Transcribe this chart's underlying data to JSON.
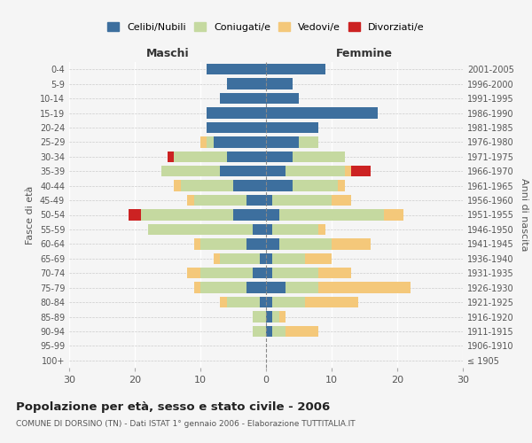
{
  "age_groups": [
    "100+",
    "95-99",
    "90-94",
    "85-89",
    "80-84",
    "75-79",
    "70-74",
    "65-69",
    "60-64",
    "55-59",
    "50-54",
    "45-49",
    "40-44",
    "35-39",
    "30-34",
    "25-29",
    "20-24",
    "15-19",
    "10-14",
    "5-9",
    "0-4"
  ],
  "birth_years": [
    "≤ 1905",
    "1906-1910",
    "1911-1915",
    "1916-1920",
    "1921-1925",
    "1926-1930",
    "1931-1935",
    "1936-1940",
    "1941-1945",
    "1946-1950",
    "1951-1955",
    "1956-1960",
    "1961-1965",
    "1966-1970",
    "1971-1975",
    "1976-1980",
    "1981-1985",
    "1986-1990",
    "1991-1995",
    "1996-2000",
    "2001-2005"
  ],
  "maschi": {
    "celibi": [
      0,
      0,
      0,
      0,
      1,
      3,
      2,
      1,
      3,
      2,
      5,
      3,
      5,
      7,
      6,
      8,
      9,
      9,
      7,
      6,
      9
    ],
    "coniugati": [
      0,
      0,
      2,
      2,
      5,
      7,
      8,
      6,
      7,
      16,
      14,
      8,
      8,
      9,
      8,
      1,
      0,
      0,
      0,
      0,
      0
    ],
    "vedovi": [
      0,
      0,
      0,
      0,
      1,
      1,
      2,
      1,
      1,
      0,
      0,
      1,
      1,
      0,
      0,
      1,
      0,
      0,
      0,
      0,
      0
    ],
    "divorziati": [
      0,
      0,
      0,
      0,
      0,
      0,
      0,
      0,
      0,
      0,
      2,
      0,
      0,
      0,
      1,
      0,
      0,
      0,
      0,
      0,
      0
    ]
  },
  "femmine": {
    "nubili": [
      0,
      0,
      1,
      1,
      1,
      3,
      1,
      1,
      2,
      1,
      2,
      1,
      4,
      3,
      4,
      5,
      8,
      17,
      5,
      4,
      9
    ],
    "coniugate": [
      0,
      0,
      2,
      1,
      5,
      5,
      7,
      5,
      8,
      7,
      16,
      9,
      7,
      9,
      8,
      3,
      0,
      0,
      0,
      0,
      0
    ],
    "vedove": [
      0,
      0,
      5,
      1,
      8,
      14,
      5,
      4,
      6,
      1,
      3,
      3,
      1,
      1,
      0,
      0,
      0,
      0,
      0,
      0,
      0
    ],
    "divorziate": [
      0,
      0,
      0,
      0,
      0,
      0,
      0,
      0,
      0,
      0,
      0,
      0,
      0,
      3,
      0,
      0,
      0,
      0,
      0,
      0,
      0
    ]
  },
  "colors": {
    "celibi_nubili": "#3d6f9e",
    "coniugati": "#c5d9a0",
    "vedovi": "#f4c87a",
    "divorziati": "#cc2222"
  },
  "title": "Popolazione per età, sesso e stato civile - 2006",
  "subtitle": "COMUNE DI DORSINO (TN) - Dati ISTAT 1° gennaio 2006 - Elaborazione TUTTITALIA.IT",
  "xlabel_left": "Maschi",
  "xlabel_right": "Femmine",
  "ylabel_left": "Fasce di età",
  "ylabel_right": "Anni di nascita",
  "xlim": 30,
  "legend_labels": [
    "Celibi/Nubili",
    "Coniugati/e",
    "Vedovi/e",
    "Divorziati/e"
  ],
  "background_color": "#f5f5f5"
}
